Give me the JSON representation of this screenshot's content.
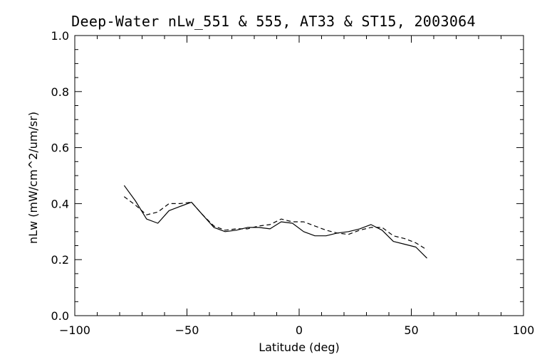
{
  "chart_data": {
    "type": "line",
    "title": "Deep-Water nLw_551 & 555, AT33 & ST15, 2003064",
    "xlabel": "Latitude (deg)",
    "ylabel": "nLw (mW/cm^2/um/sr)",
    "xlim": [
      -100,
      100
    ],
    "ylim": [
      0.0,
      1.0
    ],
    "xticks": [
      -100,
      -50,
      0,
      50,
      100
    ],
    "xtick_labels": [
      "−100",
      "−50",
      "0",
      "50",
      "100"
    ],
    "yticks": [
      0.0,
      0.2,
      0.4,
      0.6,
      0.8,
      1.0
    ],
    "ytick_labels": [
      "0.0",
      "0.2",
      "0.4",
      "0.6",
      "0.8",
      "1.0"
    ],
    "grid": false,
    "series": [
      {
        "style": "solid",
        "x": [
          -78,
          -73,
          -68,
          -63,
          -58,
          -53,
          -48,
          -43,
          -38,
          -33,
          -28,
          -23,
          -18,
          -13,
          -8,
          -3,
          2,
          7,
          12,
          17,
          22,
          27,
          32,
          37,
          42,
          47,
          52,
          57
        ],
        "y": [
          0.465,
          0.41,
          0.345,
          0.33,
          0.375,
          0.39,
          0.405,
          0.36,
          0.315,
          0.3,
          0.305,
          0.315,
          0.315,
          0.31,
          0.335,
          0.33,
          0.3,
          0.285,
          0.285,
          0.295,
          0.3,
          0.31,
          0.325,
          0.305,
          0.265,
          0.255,
          0.245,
          0.205
        ]
      },
      {
        "style": "dashed",
        "x": [
          -78,
          -73,
          -68,
          -63,
          -58,
          -53,
          -48,
          -43,
          -38,
          -33,
          -28,
          -23,
          -18,
          -13,
          -8,
          -3,
          2,
          7,
          12,
          17,
          22,
          27,
          32,
          37,
          42,
          47,
          52,
          57
        ],
        "y": [
          0.425,
          0.395,
          0.36,
          0.37,
          0.4,
          0.4,
          0.405,
          0.36,
          0.32,
          0.305,
          0.31,
          0.31,
          0.32,
          0.325,
          0.345,
          0.335,
          0.335,
          0.32,
          0.305,
          0.295,
          0.29,
          0.305,
          0.315,
          0.315,
          0.285,
          0.275,
          0.26,
          0.235
        ]
      }
    ]
  }
}
